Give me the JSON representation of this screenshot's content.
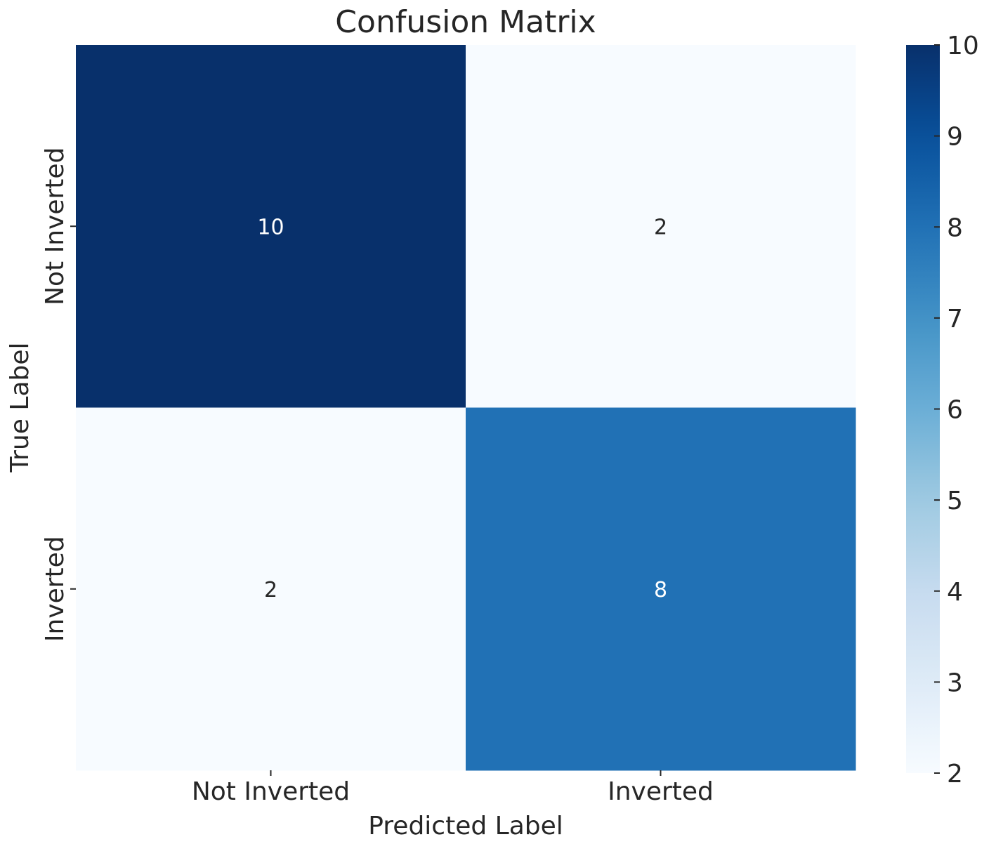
{
  "chart_data": {
    "type": "heatmap",
    "title": "Confusion Matrix",
    "xlabel": "Predicted Label",
    "ylabel": "True Label",
    "x_categories": [
      "Not Inverted",
      "Inverted"
    ],
    "y_categories": [
      "Not Inverted",
      "Inverted"
    ],
    "values": [
      [
        10,
        2
      ],
      [
        2,
        8
      ]
    ],
    "colormap": "Blues",
    "colorbar": {
      "min": 2,
      "max": 10,
      "ticks": [
        "2",
        "3",
        "4",
        "5",
        "6",
        "7",
        "8",
        "9",
        "10"
      ],
      "placement": "right"
    },
    "grid": false,
    "colors": {
      "low": "#f7fbff",
      "high": "#08306b",
      "text_dark": "#262626",
      "text_light": "#ffffff"
    }
  }
}
